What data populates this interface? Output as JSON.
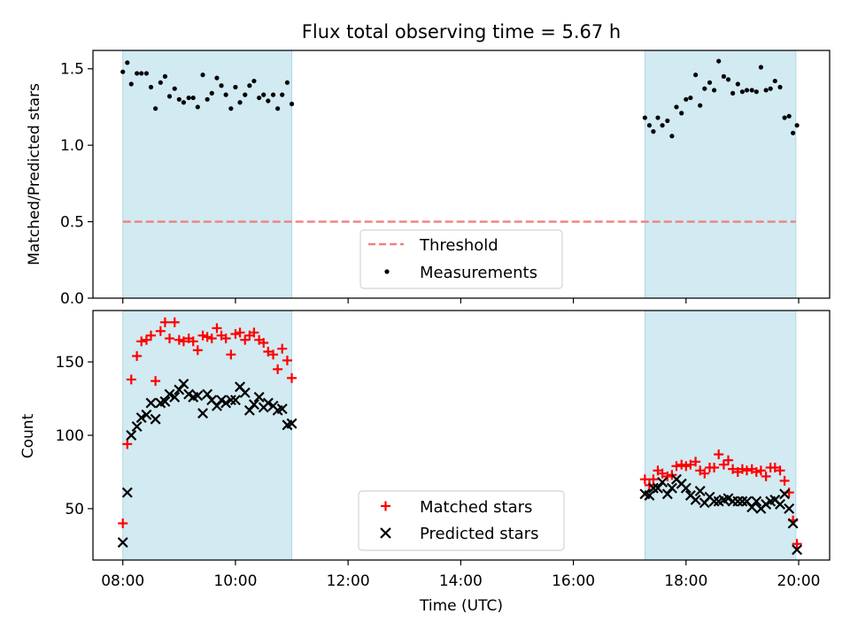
{
  "colors": {
    "band": "#add8e6",
    "threshold": "#f08080",
    "matched": "#ff0000",
    "predicted": "#000000",
    "measurement": "#000000"
  },
  "chart_data": [
    {
      "type": "scatter",
      "title": "Flux total observing time = 5.67 h",
      "ylabel": "Matched/Predicted stars",
      "xlim": [
        7.47,
        20.55
      ],
      "ylim": [
        0,
        1.62
      ],
      "yticks": [
        0.0,
        0.5,
        1.0,
        1.5
      ],
      "ytick_labels": [
        "0.0",
        "0.5",
        "1.0",
        "1.5"
      ],
      "shaded_intervals": [
        [
          8.0,
          11.0
        ],
        [
          17.27,
          19.95
        ]
      ],
      "threshold": {
        "label": "Threshold",
        "value": 0.5,
        "x_range": [
          8.0,
          19.95
        ],
        "style": "dashed"
      },
      "legend": {
        "position": "bottom-center",
        "entries": [
          "Threshold",
          "Measurements"
        ]
      },
      "series": [
        {
          "name": "Measurements",
          "marker": "dot",
          "points": [
            [
              8.0,
              1.48
            ],
            [
              8.08,
              1.54
            ],
            [
              8.15,
              1.4
            ],
            [
              8.25,
              1.47
            ],
            [
              8.33,
              1.47
            ],
            [
              8.42,
              1.47
            ],
            [
              8.5,
              1.38
            ],
            [
              8.58,
              1.24
            ],
            [
              8.67,
              1.41
            ],
            [
              8.75,
              1.45
            ],
            [
              8.83,
              1.32
            ],
            [
              8.92,
              1.37
            ],
            [
              9.0,
              1.3
            ],
            [
              9.08,
              1.28
            ],
            [
              9.17,
              1.31
            ],
            [
              9.25,
              1.31
            ],
            [
              9.33,
              1.25
            ],
            [
              9.42,
              1.46
            ],
            [
              9.5,
              1.3
            ],
            [
              9.58,
              1.34
            ],
            [
              9.67,
              1.44
            ],
            [
              9.75,
              1.39
            ],
            [
              9.83,
              1.33
            ],
            [
              9.92,
              1.24
            ],
            [
              10.0,
              1.38
            ],
            [
              10.08,
              1.28
            ],
            [
              10.17,
              1.33
            ],
            [
              10.25,
              1.39
            ],
            [
              10.33,
              1.42
            ],
            [
              10.42,
              1.31
            ],
            [
              10.5,
              1.33
            ],
            [
              10.58,
              1.29
            ],
            [
              10.67,
              1.33
            ],
            [
              10.75,
              1.24
            ],
            [
              10.83,
              1.33
            ],
            [
              10.92,
              1.41
            ],
            [
              11.0,
              1.27
            ],
            [
              17.27,
              1.18
            ],
            [
              17.35,
              1.13
            ],
            [
              17.42,
              1.09
            ],
            [
              17.5,
              1.18
            ],
            [
              17.58,
              1.13
            ],
            [
              17.67,
              1.16
            ],
            [
              17.75,
              1.06
            ],
            [
              17.83,
              1.25
            ],
            [
              17.92,
              1.21
            ],
            [
              18.0,
              1.3
            ],
            [
              18.08,
              1.31
            ],
            [
              18.17,
              1.46
            ],
            [
              18.25,
              1.26
            ],
            [
              18.33,
              1.37
            ],
            [
              18.42,
              1.41
            ],
            [
              18.5,
              1.36
            ],
            [
              18.58,
              1.55
            ],
            [
              18.67,
              1.45
            ],
            [
              18.75,
              1.43
            ],
            [
              18.83,
              1.34
            ],
            [
              18.92,
              1.4
            ],
            [
              19.0,
              1.35
            ],
            [
              19.08,
              1.36
            ],
            [
              19.17,
              1.36
            ],
            [
              19.25,
              1.35
            ],
            [
              19.33,
              1.51
            ],
            [
              19.42,
              1.36
            ],
            [
              19.5,
              1.37
            ],
            [
              19.58,
              1.42
            ],
            [
              19.67,
              1.38
            ],
            [
              19.75,
              1.18
            ],
            [
              19.83,
              1.19
            ],
            [
              19.9,
              1.08
            ],
            [
              19.97,
              1.13
            ]
          ]
        }
      ]
    },
    {
      "type": "scatter",
      "xlabel": "Time (UTC)",
      "ylabel": "Count",
      "xlim": [
        7.47,
        20.55
      ],
      "ylim": [
        15,
        185
      ],
      "xticks": [
        8,
        10,
        12,
        14,
        16,
        18,
        20
      ],
      "xtick_labels": [
        "08:00",
        "10:00",
        "12:00",
        "14:00",
        "16:00",
        "18:00",
        "20:00"
      ],
      "yticks": [
        50,
        100,
        150
      ],
      "ytick_labels": [
        "50",
        "100",
        "150"
      ],
      "shaded_intervals": [
        [
          8.0,
          11.0
        ],
        [
          17.27,
          19.95
        ]
      ],
      "legend": {
        "position": "bottom-center",
        "entries": [
          "Matched stars",
          "Predicted stars"
        ]
      },
      "series": [
        {
          "name": "Matched stars",
          "marker": "plus",
          "points": [
            [
              8.0,
              40
            ],
            [
              8.08,
              94
            ],
            [
              8.15,
              138
            ],
            [
              8.25,
              154
            ],
            [
              8.33,
              164
            ],
            [
              8.42,
              165
            ],
            [
              8.5,
              168
            ],
            [
              8.58,
              137
            ],
            [
              8.67,
              171
            ],
            [
              8.75,
              177
            ],
            [
              8.83,
              166
            ],
            [
              8.92,
              177
            ],
            [
              9.0,
              165
            ],
            [
              9.08,
              164
            ],
            [
              9.17,
              166
            ],
            [
              9.25,
              164
            ],
            [
              9.33,
              158
            ],
            [
              9.42,
              168
            ],
            [
              9.5,
              167
            ],
            [
              9.58,
              166
            ],
            [
              9.67,
              173
            ],
            [
              9.75,
              168
            ],
            [
              9.83,
              166
            ],
            [
              9.92,
              155
            ],
            [
              10.0,
              169
            ],
            [
              10.08,
              170
            ],
            [
              10.17,
              165
            ],
            [
              10.25,
              168
            ],
            [
              10.33,
              170
            ],
            [
              10.42,
              165
            ],
            [
              10.5,
              163
            ],
            [
              10.58,
              157
            ],
            [
              10.67,
              155
            ],
            [
              10.75,
              145
            ],
            [
              10.83,
              159
            ],
            [
              10.92,
              151
            ],
            [
              11.0,
              139
            ],
            [
              17.27,
              70
            ],
            [
              17.35,
              66
            ],
            [
              17.42,
              70
            ],
            [
              17.5,
              76
            ],
            [
              17.58,
              74
            ],
            [
              17.67,
              72
            ],
            [
              17.75,
              73
            ],
            [
              17.83,
              79
            ],
            [
              17.92,
              80
            ],
            [
              18.0,
              79
            ],
            [
              18.08,
              80
            ],
            [
              18.17,
              82
            ],
            [
              18.25,
              76
            ],
            [
              18.33,
              74
            ],
            [
              18.42,
              78
            ],
            [
              18.5,
              78
            ],
            [
              18.58,
              87
            ],
            [
              18.67,
              80
            ],
            [
              18.75,
              83
            ],
            [
              18.83,
              77
            ],
            [
              18.92,
              75
            ],
            [
              19.0,
              77
            ],
            [
              19.08,
              76
            ],
            [
              19.17,
              77
            ],
            [
              19.25,
              75
            ],
            [
              19.33,
              76
            ],
            [
              19.42,
              72
            ],
            [
              19.5,
              78
            ],
            [
              19.58,
              78
            ],
            [
              19.67,
              76
            ],
            [
              19.75,
              69
            ],
            [
              19.83,
              61
            ],
            [
              19.9,
              42
            ],
            [
              19.97,
              26
            ]
          ]
        },
        {
          "name": "Predicted stars",
          "marker": "x",
          "points": [
            [
              8.0,
              27
            ],
            [
              8.08,
              61
            ],
            [
              8.15,
              100
            ],
            [
              8.25,
              106
            ],
            [
              8.33,
              112
            ],
            [
              8.42,
              114
            ],
            [
              8.5,
              122
            ],
            [
              8.58,
              111
            ],
            [
              8.67,
              122
            ],
            [
              8.75,
              123
            ],
            [
              8.83,
              128
            ],
            [
              8.92,
              126
            ],
            [
              9.0,
              131
            ],
            [
              9.08,
              135
            ],
            [
              9.17,
              128
            ],
            [
              9.25,
              126
            ],
            [
              9.33,
              127
            ],
            [
              9.42,
              115
            ],
            [
              9.5,
              128
            ],
            [
              9.58,
              124
            ],
            [
              9.67,
              120
            ],
            [
              9.75,
              124
            ],
            [
              9.83,
              122
            ],
            [
              9.92,
              124
            ],
            [
              10.0,
              124
            ],
            [
              10.08,
              133
            ],
            [
              10.17,
              129
            ],
            [
              10.25,
              117
            ],
            [
              10.33,
              121
            ],
            [
              10.42,
              126
            ],
            [
              10.5,
              119
            ],
            [
              10.58,
              122
            ],
            [
              10.67,
              120
            ],
            [
              10.75,
              117
            ],
            [
              10.83,
              118
            ],
            [
              10.92,
              107
            ],
            [
              11.0,
              108
            ],
            [
              17.27,
              60
            ],
            [
              17.35,
              59
            ],
            [
              17.42,
              64
            ],
            [
              17.5,
              64
            ],
            [
              17.58,
              68
            ],
            [
              17.67,
              60
            ],
            [
              17.75,
              64
            ],
            [
              17.83,
              70
            ],
            [
              17.92,
              67
            ],
            [
              18.0,
              64
            ],
            [
              18.08,
              59
            ],
            [
              18.17,
              56
            ],
            [
              18.25,
              62
            ],
            [
              18.33,
              54
            ],
            [
              18.42,
              58
            ],
            [
              18.5,
              55
            ],
            [
              18.58,
              55
            ],
            [
              18.67,
              56
            ],
            [
              18.75,
              57
            ],
            [
              18.83,
              55
            ],
            [
              18.92,
              55
            ],
            [
              19.0,
              55
            ],
            [
              19.08,
              55
            ],
            [
              19.17,
              51
            ],
            [
              19.25,
              55
            ],
            [
              19.33,
              50
            ],
            [
              19.42,
              53
            ],
            [
              19.5,
              55
            ],
            [
              19.58,
              56
            ],
            [
              19.67,
              53
            ],
            [
              19.75,
              60
            ],
            [
              19.83,
              50
            ],
            [
              19.9,
              40
            ],
            [
              19.97,
              22
            ]
          ]
        }
      ]
    }
  ]
}
